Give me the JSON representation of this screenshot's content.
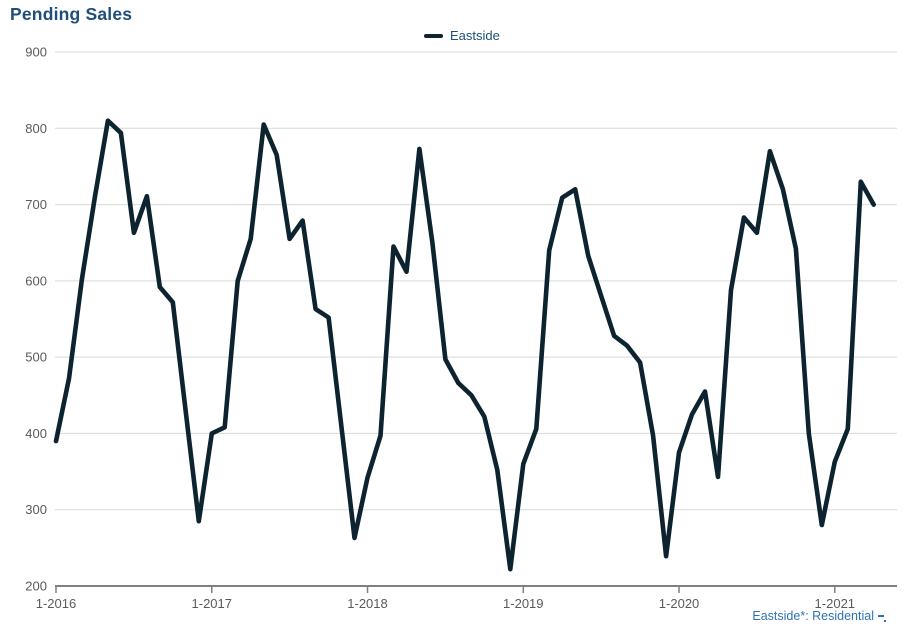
{
  "title": {
    "text": "Pending Sales"
  },
  "legend": {
    "items": [
      {
        "label": "Eastside",
        "color": "#0D2430"
      }
    ]
  },
  "footer": {
    "note": "Eastside*: Residential"
  },
  "colors": {
    "title": "#1F4E79",
    "legend_label": "#1F4E79",
    "axis_label": "#5A5A5A",
    "gridline": "#D9D9D9",
    "axis_line": "#7F7F7F",
    "series_line": "#0D2430",
    "footer_text": "#2E74B5",
    "background": "#FFFFFF"
  },
  "chart_data": {
    "type": "line",
    "title": "Pending Sales",
    "grid": "horizontal",
    "legend_position": "top-center",
    "x_start": "Jan 2016",
    "x_end": "Apr 2021",
    "months_per_point": 1,
    "x_tick_labels": [
      "1-2016",
      "1-2017",
      "1-2018",
      "1-2019",
      "1-2020",
      "1-2021"
    ],
    "months_per_tick": 12,
    "y_ticks": [
      900,
      800,
      700,
      600,
      500,
      400,
      300,
      200
    ],
    "ylim": [
      200,
      900
    ],
    "series": [
      {
        "name": "Eastside",
        "color": "#0D2430",
        "values": [
          390,
          472,
          603,
          710,
          810,
          794,
          663,
          711,
          592,
          572,
          428,
          285,
          400,
          408,
          600,
          655,
          805,
          765,
          655,
          679,
          563,
          552,
          407,
          263,
          342,
          397,
          645,
          612,
          773,
          650,
          497,
          466,
          450,
          422,
          352,
          222,
          360,
          406,
          640,
          709,
          720,
          633,
          580,
          528,
          515,
          493,
          397,
          239,
          375,
          425,
          455,
          343,
          588,
          683,
          663,
          770,
          720,
          642,
          400,
          280,
          363,
          406,
          730,
          700
        ]
      }
    ]
  }
}
